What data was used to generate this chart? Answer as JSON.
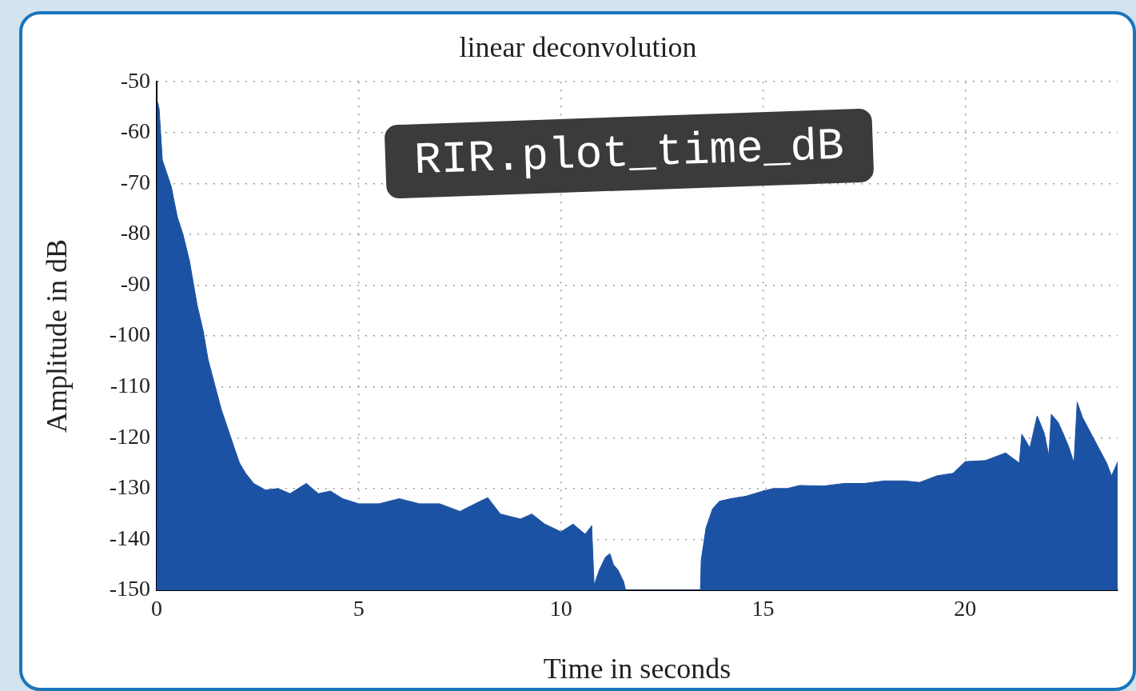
{
  "chart_data": {
    "type": "area",
    "title": "linear deconvolution",
    "xlabel": "Time in seconds",
    "ylabel": "Amplitude in dB",
    "annotations": [
      "RIR.plot_time_dB"
    ],
    "x": [
      0,
      0.02,
      0.06,
      0.14,
      0.25,
      0.36,
      0.51,
      0.65,
      0.81,
      1.0,
      1.15,
      1.27,
      1.45,
      1.6,
      1.75,
      1.94,
      2.05,
      2.2,
      2.4,
      2.69,
      3.0,
      3.3,
      3.7,
      4.0,
      4.3,
      4.6,
      5.0,
      5.5,
      6.0,
      6.5,
      7.0,
      7.5,
      8.0,
      8.19,
      8.5,
      9.0,
      9.28,
      9.6,
      10.0,
      10.3,
      10.6,
      10.76,
      10.82,
      10.95,
      11.1,
      11.21,
      11.3,
      11.41,
      11.55,
      11.6,
      12.5,
      13.45,
      13.47,
      13.59,
      13.75,
      13.92,
      14.2,
      14.58,
      15.0,
      15.25,
      15.6,
      15.9,
      16.5,
      17.0,
      17.5,
      18.0,
      18.5,
      18.87,
      19.3,
      19.7,
      20.0,
      20.5,
      21.0,
      21.34,
      21.4,
      21.6,
      21.78,
      21.95,
      22.07,
      22.13,
      22.3,
      22.43,
      22.57,
      22.69,
      22.77,
      22.9,
      23.1,
      23.3,
      23.5,
      23.62,
      23.77,
      23.77
    ],
    "values": [
      -150,
      -54,
      -55.3,
      -65.4,
      -68,
      -70.6,
      -76.6,
      -80,
      -85.2,
      -93.9,
      -99,
      -104.6,
      -110,
      -114.5,
      -118,
      -122.5,
      -125,
      -127,
      -129,
      -130.3,
      -130,
      -131,
      -129,
      -131,
      -130.5,
      -132,
      -133,
      -133,
      -132,
      -133,
      -133,
      -134.5,
      -132.5,
      -131.8,
      -135,
      -136,
      -135,
      -137,
      -138.5,
      -137,
      -139,
      -137.3,
      -149,
      -146,
      -143.5,
      -142.8,
      -145,
      -146,
      -148.3,
      -150,
      -150,
      -150,
      -144,
      -137.7,
      -134,
      -132.5,
      -132,
      -131.5,
      -130.5,
      -130,
      -130,
      -129.4,
      -129.5,
      -129,
      -129,
      -128.5,
      -128.5,
      -128.8,
      -127.5,
      -127,
      -124.7,
      -124.5,
      -123,
      -125,
      -119.3,
      -122,
      -115.7,
      -119,
      -123.6,
      -115.4,
      -117,
      -119.3,
      -122,
      -125,
      -113,
      -116,
      -119,
      -122,
      -125,
      -127.5,
      -124.8,
      -150
    ],
    "color": "#1c52a3",
    "xlim": [
      0,
      23.77
    ],
    "xticks": [
      0,
      5,
      10,
      15,
      20
    ],
    "ylim": [
      -150,
      -50
    ],
    "yticks": [
      -150,
      -140,
      -130,
      -120,
      -110,
      -100,
      -90,
      -80,
      -70,
      -60,
      -50
    ],
    "grid": true,
    "legend": false
  }
}
